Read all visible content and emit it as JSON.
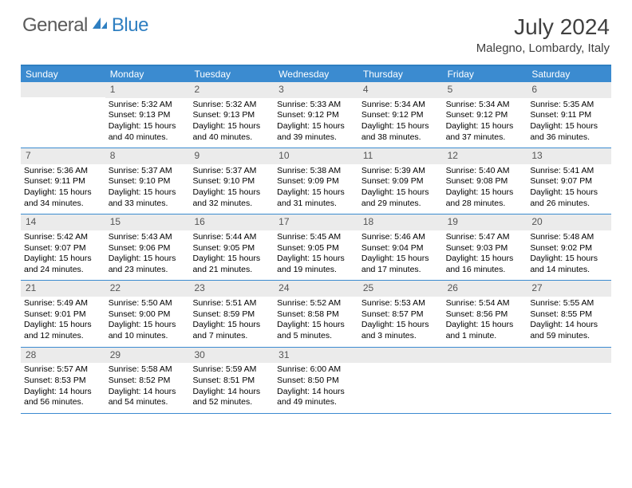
{
  "logo": {
    "general": "General",
    "blue": "Blue",
    "icon_color": "#2f7fc1"
  },
  "title": "July 2024",
  "location": "Malegno, Lombardy, Italy",
  "header_bg": "#3b8bd0",
  "border_color": "#2f7fc1",
  "daynum_bg": "#ebebeb",
  "weekdays": [
    "Sunday",
    "Monday",
    "Tuesday",
    "Wednesday",
    "Thursday",
    "Friday",
    "Saturday"
  ],
  "weeks": [
    [
      {
        "n": "",
        "sr": "",
        "ss": "",
        "dl": ""
      },
      {
        "n": "1",
        "sr": "Sunrise: 5:32 AM",
        "ss": "Sunset: 9:13 PM",
        "dl": "Daylight: 15 hours and 40 minutes."
      },
      {
        "n": "2",
        "sr": "Sunrise: 5:32 AM",
        "ss": "Sunset: 9:13 PM",
        "dl": "Daylight: 15 hours and 40 minutes."
      },
      {
        "n": "3",
        "sr": "Sunrise: 5:33 AM",
        "ss": "Sunset: 9:12 PM",
        "dl": "Daylight: 15 hours and 39 minutes."
      },
      {
        "n": "4",
        "sr": "Sunrise: 5:34 AM",
        "ss": "Sunset: 9:12 PM",
        "dl": "Daylight: 15 hours and 38 minutes."
      },
      {
        "n": "5",
        "sr": "Sunrise: 5:34 AM",
        "ss": "Sunset: 9:12 PM",
        "dl": "Daylight: 15 hours and 37 minutes."
      },
      {
        "n": "6",
        "sr": "Sunrise: 5:35 AM",
        "ss": "Sunset: 9:11 PM",
        "dl": "Daylight: 15 hours and 36 minutes."
      }
    ],
    [
      {
        "n": "7",
        "sr": "Sunrise: 5:36 AM",
        "ss": "Sunset: 9:11 PM",
        "dl": "Daylight: 15 hours and 34 minutes."
      },
      {
        "n": "8",
        "sr": "Sunrise: 5:37 AM",
        "ss": "Sunset: 9:10 PM",
        "dl": "Daylight: 15 hours and 33 minutes."
      },
      {
        "n": "9",
        "sr": "Sunrise: 5:37 AM",
        "ss": "Sunset: 9:10 PM",
        "dl": "Daylight: 15 hours and 32 minutes."
      },
      {
        "n": "10",
        "sr": "Sunrise: 5:38 AM",
        "ss": "Sunset: 9:09 PM",
        "dl": "Daylight: 15 hours and 31 minutes."
      },
      {
        "n": "11",
        "sr": "Sunrise: 5:39 AM",
        "ss": "Sunset: 9:09 PM",
        "dl": "Daylight: 15 hours and 29 minutes."
      },
      {
        "n": "12",
        "sr": "Sunrise: 5:40 AM",
        "ss": "Sunset: 9:08 PM",
        "dl": "Daylight: 15 hours and 28 minutes."
      },
      {
        "n": "13",
        "sr": "Sunrise: 5:41 AM",
        "ss": "Sunset: 9:07 PM",
        "dl": "Daylight: 15 hours and 26 minutes."
      }
    ],
    [
      {
        "n": "14",
        "sr": "Sunrise: 5:42 AM",
        "ss": "Sunset: 9:07 PM",
        "dl": "Daylight: 15 hours and 24 minutes."
      },
      {
        "n": "15",
        "sr": "Sunrise: 5:43 AM",
        "ss": "Sunset: 9:06 PM",
        "dl": "Daylight: 15 hours and 23 minutes."
      },
      {
        "n": "16",
        "sr": "Sunrise: 5:44 AM",
        "ss": "Sunset: 9:05 PM",
        "dl": "Daylight: 15 hours and 21 minutes."
      },
      {
        "n": "17",
        "sr": "Sunrise: 5:45 AM",
        "ss": "Sunset: 9:05 PM",
        "dl": "Daylight: 15 hours and 19 minutes."
      },
      {
        "n": "18",
        "sr": "Sunrise: 5:46 AM",
        "ss": "Sunset: 9:04 PM",
        "dl": "Daylight: 15 hours and 17 minutes."
      },
      {
        "n": "19",
        "sr": "Sunrise: 5:47 AM",
        "ss": "Sunset: 9:03 PM",
        "dl": "Daylight: 15 hours and 16 minutes."
      },
      {
        "n": "20",
        "sr": "Sunrise: 5:48 AM",
        "ss": "Sunset: 9:02 PM",
        "dl": "Daylight: 15 hours and 14 minutes."
      }
    ],
    [
      {
        "n": "21",
        "sr": "Sunrise: 5:49 AM",
        "ss": "Sunset: 9:01 PM",
        "dl": "Daylight: 15 hours and 12 minutes."
      },
      {
        "n": "22",
        "sr": "Sunrise: 5:50 AM",
        "ss": "Sunset: 9:00 PM",
        "dl": "Daylight: 15 hours and 10 minutes."
      },
      {
        "n": "23",
        "sr": "Sunrise: 5:51 AM",
        "ss": "Sunset: 8:59 PM",
        "dl": "Daylight: 15 hours and 7 minutes."
      },
      {
        "n": "24",
        "sr": "Sunrise: 5:52 AM",
        "ss": "Sunset: 8:58 PM",
        "dl": "Daylight: 15 hours and 5 minutes."
      },
      {
        "n": "25",
        "sr": "Sunrise: 5:53 AM",
        "ss": "Sunset: 8:57 PM",
        "dl": "Daylight: 15 hours and 3 minutes."
      },
      {
        "n": "26",
        "sr": "Sunrise: 5:54 AM",
        "ss": "Sunset: 8:56 PM",
        "dl": "Daylight: 15 hours and 1 minute."
      },
      {
        "n": "27",
        "sr": "Sunrise: 5:55 AM",
        "ss": "Sunset: 8:55 PM",
        "dl": "Daylight: 14 hours and 59 minutes."
      }
    ],
    [
      {
        "n": "28",
        "sr": "Sunrise: 5:57 AM",
        "ss": "Sunset: 8:53 PM",
        "dl": "Daylight: 14 hours and 56 minutes."
      },
      {
        "n": "29",
        "sr": "Sunrise: 5:58 AM",
        "ss": "Sunset: 8:52 PM",
        "dl": "Daylight: 14 hours and 54 minutes."
      },
      {
        "n": "30",
        "sr": "Sunrise: 5:59 AM",
        "ss": "Sunset: 8:51 PM",
        "dl": "Daylight: 14 hours and 52 minutes."
      },
      {
        "n": "31",
        "sr": "Sunrise: 6:00 AM",
        "ss": "Sunset: 8:50 PM",
        "dl": "Daylight: 14 hours and 49 minutes."
      },
      {
        "n": "",
        "sr": "",
        "ss": "",
        "dl": ""
      },
      {
        "n": "",
        "sr": "",
        "ss": "",
        "dl": ""
      },
      {
        "n": "",
        "sr": "",
        "ss": "",
        "dl": ""
      }
    ]
  ]
}
